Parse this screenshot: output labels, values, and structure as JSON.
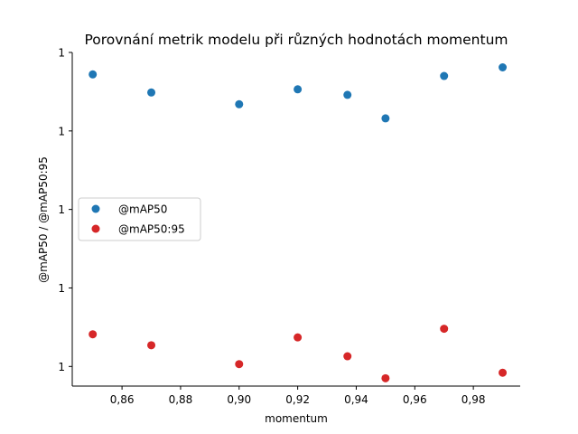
{
  "chart_data": {
    "type": "scatter",
    "title": "Porovnání metrik modelu při různých hodnotách momentum",
    "xlabel": "momentum",
    "ylabel": "@mAP50 / @mAP50:95",
    "xlim": [
      0.843,
      0.996
    ],
    "ylim": [
      0.9575,
      1.0
    ],
    "x_ticks": [
      0.86,
      0.88,
      0.9,
      0.92,
      0.94,
      0.96,
      0.98
    ],
    "x_tick_labels": [
      "0,86",
      "0,88",
      "0,90",
      "0,92",
      "0,94",
      "0,96",
      "0,98"
    ],
    "y_ticks": [
      0.96,
      0.97,
      0.98,
      0.99,
      1.0
    ],
    "y_tick_labels": [
      "1",
      "1",
      "1",
      "1",
      "1"
    ],
    "grid": false,
    "legend_position": "center-left",
    "series": [
      {
        "name": "@mAP50",
        "color": "#1f77b4",
        "x": [
          0.85,
          0.87,
          0.9,
          0.92,
          0.937,
          0.95,
          0.97,
          0.99
        ],
        "y": [
          0.9972,
          0.9949,
          0.9934,
          0.9953,
          0.9946,
          0.9916,
          0.997,
          0.9981
        ]
      },
      {
        "name": "@mAP50:95",
        "color": "#d62728",
        "x": [
          0.85,
          0.87,
          0.9,
          0.92,
          0.937,
          0.95,
          0.97,
          0.99
        ],
        "y": [
          0.9641,
          0.9627,
          0.9603,
          0.9637,
          0.9613,
          0.9585,
          0.9648,
          0.9592
        ]
      }
    ]
  }
}
